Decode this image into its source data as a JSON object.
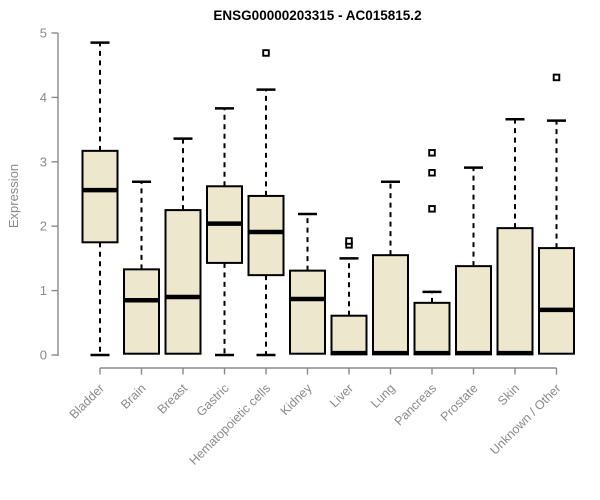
{
  "chart": {
    "title": "ENSG00000203315 - AC015815.2",
    "ylabel": "Expression"
  },
  "chart_data": {
    "type": "boxplot",
    "title": "ENSG00000203315 - AC015815.2",
    "xlabel": "",
    "ylabel": "Expression",
    "ylim": [
      0,
      5
    ],
    "yticks": [
      0,
      1,
      2,
      3,
      4,
      5
    ],
    "grid": false,
    "legend": "none",
    "box_fill_color": "#EDE8CD",
    "box_border_color": "#000000",
    "axis_color": "#8A8A8A",
    "categories": [
      "Bladder",
      "Brain",
      "Breast",
      "Gastric",
      "Hematopoietic cells",
      "Kidney",
      "Liver",
      "Lung",
      "Pancreas",
      "Prostate",
      "Skin",
      "Unknown / Other"
    ],
    "series": [
      {
        "name": "Bladder",
        "min": 0,
        "q1": 1.75,
        "median": 2.56,
        "q3": 3.17,
        "max": 4.85,
        "outliers": []
      },
      {
        "name": "Brain",
        "min": 0,
        "q1": 0.02,
        "median": 0.85,
        "q3": 1.33,
        "max": 2.69,
        "outliers": []
      },
      {
        "name": "Breast",
        "min": 0,
        "q1": 0.02,
        "median": 0.9,
        "q3": 2.25,
        "max": 3.36,
        "outliers": []
      },
      {
        "name": "Gastric",
        "min": 0,
        "q1": 1.43,
        "median": 2.04,
        "q3": 2.62,
        "max": 3.83,
        "outliers": []
      },
      {
        "name": "Hematopoietic cells",
        "min": 0,
        "q1": 1.24,
        "median": 1.91,
        "q3": 2.47,
        "max": 4.12,
        "outliers": [
          4.69
        ]
      },
      {
        "name": "Kidney",
        "min": 0,
        "q1": 0.02,
        "median": 0.87,
        "q3": 1.31,
        "max": 2.19,
        "outliers": []
      },
      {
        "name": "Liver",
        "min": 0,
        "q1": 0.02,
        "median": 0.03,
        "q3": 0.61,
        "max": 1.5,
        "outliers": [
          1.71,
          1.77
        ]
      },
      {
        "name": "Lung",
        "min": 0,
        "q1": 0.02,
        "median": 0.03,
        "q3": 1.55,
        "max": 2.69,
        "outliers": []
      },
      {
        "name": "Pancreas",
        "min": 0,
        "q1": 0.02,
        "median": 0.03,
        "q3": 0.81,
        "max": 0.98,
        "outliers": [
          2.27,
          2.83,
          3.14
        ]
      },
      {
        "name": "Prostate",
        "min": 0,
        "q1": 0.02,
        "median": 0.03,
        "q3": 1.38,
        "max": 2.91,
        "outliers": []
      },
      {
        "name": "Skin",
        "min": 0,
        "q1": 0.02,
        "median": 0.03,
        "q3": 1.97,
        "max": 3.66,
        "outliers": []
      },
      {
        "name": "Unknown / Other",
        "min": 0,
        "q1": 0.02,
        "median": 0.7,
        "q3": 1.66,
        "max": 3.64,
        "outliers": [
          4.31
        ]
      }
    ]
  }
}
